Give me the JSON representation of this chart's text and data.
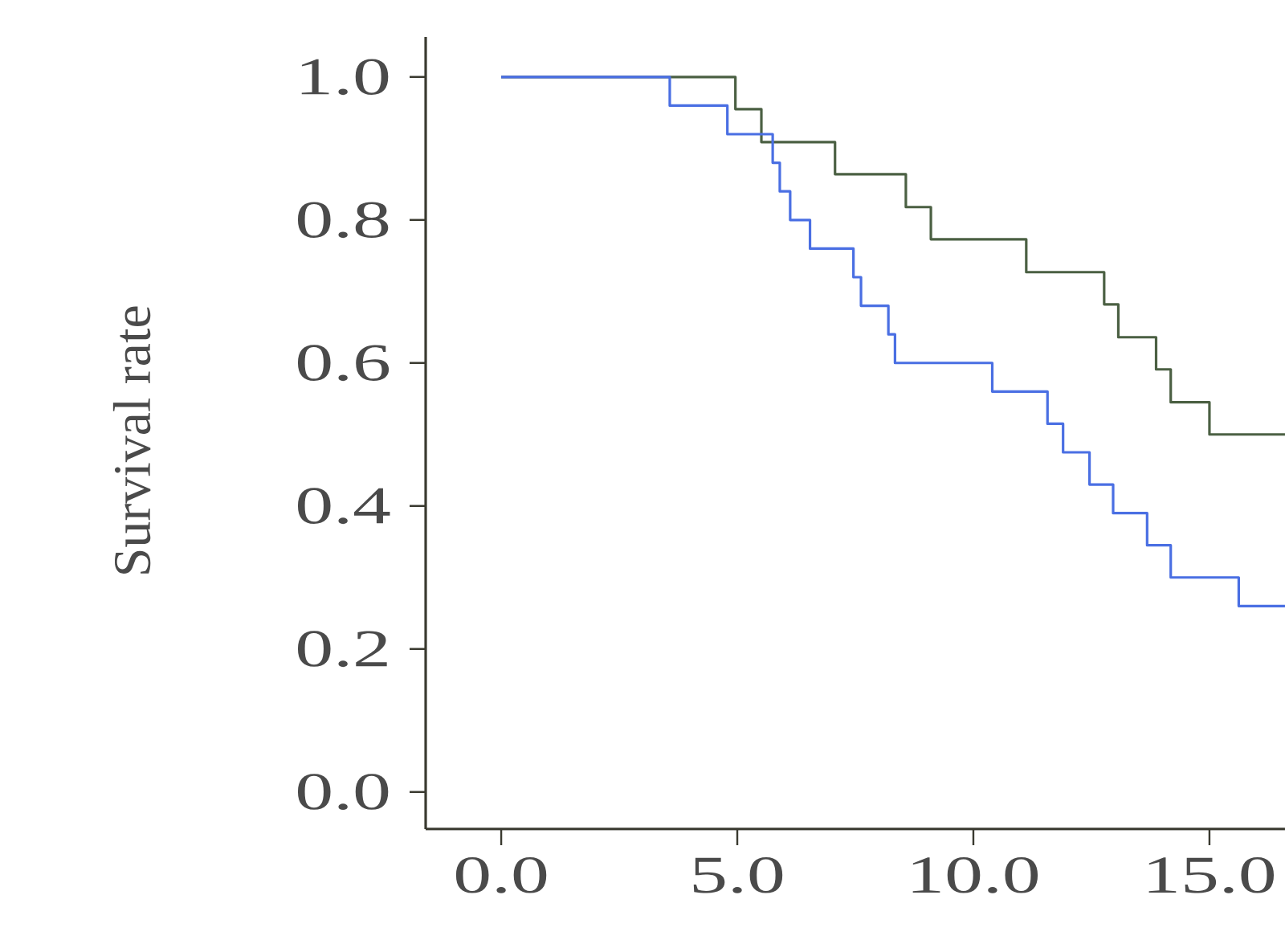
{
  "chart_data": {
    "type": "step",
    "ylabel": "Survival rate",
    "line_style": "solid",
    "xlim": [
      -1.6,
      16.6
    ],
    "ylim": [
      -0.052,
      1.056
    ],
    "xticks": [
      {
        "value": 0,
        "label": "0.0"
      },
      {
        "value": 5,
        "label": "5.0"
      },
      {
        "value": 10,
        "label": "10.0"
      },
      {
        "value": 15,
        "label": "15.0"
      }
    ],
    "yticks": [
      {
        "value": 0,
        "label": "0.0"
      },
      {
        "value": 0.2,
        "label": "0.2"
      },
      {
        "value": 0.4,
        "label": "0.4"
      },
      {
        "value": 0.6,
        "label": "0.6"
      },
      {
        "value": 0.8,
        "label": "0.8"
      },
      {
        "value": 1,
        "label": "1.0"
      }
    ],
    "series": [
      {
        "color": "#4b6043",
        "x": [
          0,
          4.96,
          5.51,
          7.07,
          8.57,
          9.1,
          11.12,
          12.77,
          13.07,
          13.87,
          14.18,
          15.0,
          16.6
        ],
        "values": [
          1.0,
          0.955,
          0.909,
          0.864,
          0.818,
          0.773,
          0.727,
          0.682,
          0.636,
          0.591,
          0.545,
          0.5,
          0.5
        ]
      },
      {
        "color": "#4a6fe3",
        "x": [
          0,
          3.57,
          4.79,
          5.75,
          5.9,
          6.12,
          6.54,
          7.46,
          7.62,
          8.2,
          8.34,
          10.4,
          11.57,
          11.9,
          12.46,
          12.96,
          13.68,
          14.18,
          15.62,
          16.6
        ],
        "values": [
          1.0,
          0.96,
          0.92,
          0.88,
          0.84,
          0.8,
          0.76,
          0.72,
          0.68,
          0.64,
          0.6,
          0.56,
          0.515,
          0.475,
          0.43,
          0.39,
          0.345,
          0.3,
          0.26,
          0.26
        ]
      }
    ]
  }
}
